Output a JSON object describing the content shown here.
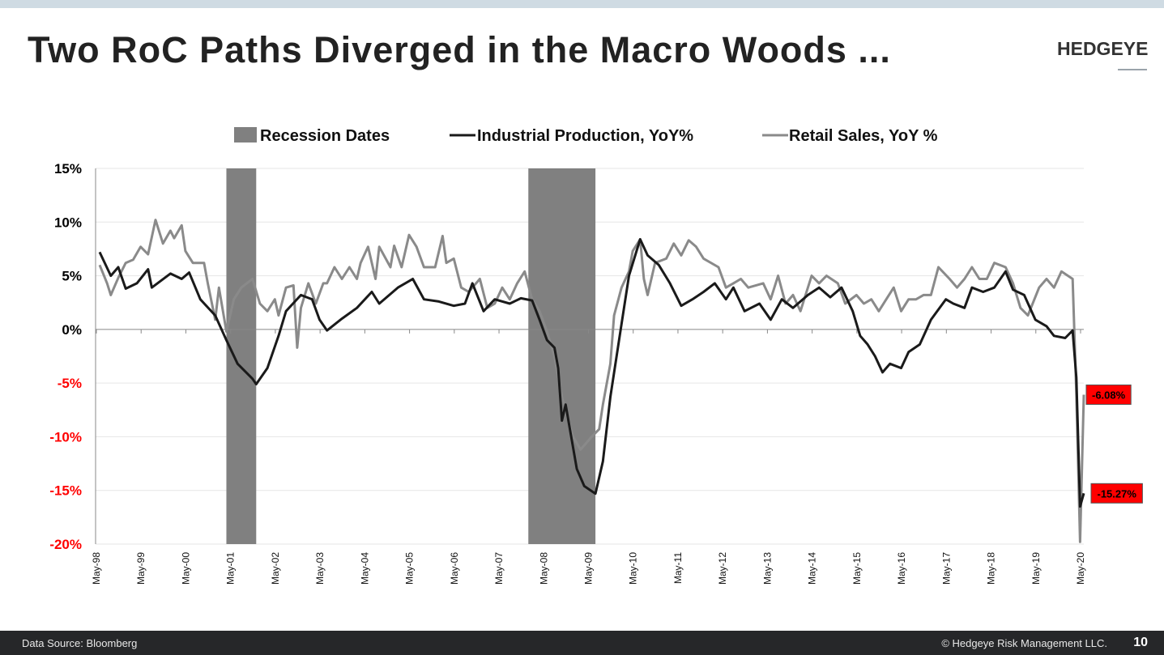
{
  "header": {
    "title": "Two RoC Paths Diverged in the Macro Woods ...",
    "logo": "HEDGEYE"
  },
  "footer": {
    "source": "Data Source: Bloomberg",
    "copyright": "© Hedgeye Risk Management LLC.",
    "page": "10"
  },
  "colors": {
    "recession": "#808080",
    "industrial_production": "#1a1a1a",
    "retail_sales": "#8a8a8a",
    "negative_tick": "#ff0000",
    "callout_bg": "#ff0000",
    "topbar": "#cfdbe3",
    "footer_bg": "#262729"
  },
  "chart_data": {
    "type": "line",
    "title": "",
    "xlabel": "",
    "ylabel": "",
    "ylim": [
      -20,
      15
    ],
    "yticks": [
      "15%",
      "10%",
      "5%",
      "0%",
      "-5%",
      "-10%",
      "-15%",
      "-20%"
    ],
    "ytick_values": [
      15,
      10,
      5,
      0,
      -5,
      -10,
      -15,
      -20
    ],
    "xlim": [
      "1998-05",
      "2020-05"
    ],
    "xticks": [
      "May-98",
      "May-99",
      "May-00",
      "May-01",
      "May-02",
      "May-03",
      "May-04",
      "May-05",
      "May-06",
      "May-07",
      "May-08",
      "May-09",
      "May-10",
      "May-11",
      "May-12",
      "May-13",
      "May-14",
      "May-15",
      "May-16",
      "May-17",
      "May-18",
      "May-19",
      "May-20"
    ],
    "grid": true,
    "legend_placement": "top",
    "legend": [
      "Recession Dates",
      "Industrial Production, YoY%",
      "Retail Sales, YoY %"
    ],
    "recessions": [
      {
        "start": "2001-03",
        "end": "2001-11"
      },
      {
        "start": "2007-12",
        "end": "2009-06"
      }
    ],
    "series": [
      {
        "name": "Industrial Production, YoY%",
        "points": [
          [
            "1998-05",
            7.2
          ],
          [
            "1998-08",
            5.0
          ],
          [
            "1998-10",
            5.8
          ],
          [
            "1998-12",
            3.8
          ],
          [
            "1999-03",
            4.3
          ],
          [
            "1999-06",
            5.6
          ],
          [
            "1999-07",
            3.9
          ],
          [
            "1999-12",
            5.2
          ],
          [
            "2000-03",
            4.7
          ],
          [
            "2000-05",
            5.3
          ],
          [
            "2000-08",
            2.8
          ],
          [
            "2000-12",
            1.3
          ],
          [
            "2001-03",
            -1.0
          ],
          [
            "2001-06",
            -3.2
          ],
          [
            "2001-10",
            -4.6
          ],
          [
            "2001-11",
            -5.1
          ],
          [
            "2002-02",
            -3.6
          ],
          [
            "2002-05",
            -0.6
          ],
          [
            "2002-07",
            1.7
          ],
          [
            "2002-11",
            3.2
          ],
          [
            "2003-02",
            2.8
          ],
          [
            "2003-04",
            0.9
          ],
          [
            "2003-06",
            -0.1
          ],
          [
            "2003-10",
            1.0
          ],
          [
            "2004-02",
            2.0
          ],
          [
            "2004-06",
            3.5
          ],
          [
            "2004-08",
            2.4
          ],
          [
            "2005-01",
            3.9
          ],
          [
            "2005-05",
            4.7
          ],
          [
            "2005-08",
            2.8
          ],
          [
            "2005-12",
            2.6
          ],
          [
            "2006-04",
            2.2
          ],
          [
            "2006-07",
            2.4
          ],
          [
            "2006-09",
            4.3
          ],
          [
            "2006-12",
            1.7
          ],
          [
            "2007-03",
            2.8
          ],
          [
            "2007-07",
            2.4
          ],
          [
            "2007-10",
            2.9
          ],
          [
            "2008-01",
            2.7
          ],
          [
            "2008-03",
            0.9
          ],
          [
            "2008-05",
            -1.0
          ],
          [
            "2008-07",
            -1.7
          ],
          [
            "2008-08",
            -3.6
          ],
          [
            "2008-09",
            -8.5
          ],
          [
            "2008-10",
            -7.0
          ],
          [
            "2009-01",
            -13.0
          ],
          [
            "2009-03",
            -14.6
          ],
          [
            "2009-06",
            -15.3
          ],
          [
            "2009-08",
            -12.3
          ],
          [
            "2009-10",
            -6.3
          ],
          [
            "2010-01",
            0.5
          ],
          [
            "2010-03",
            5.0
          ],
          [
            "2010-06",
            8.4
          ],
          [
            "2010-08",
            6.9
          ],
          [
            "2010-11",
            6.0
          ],
          [
            "2011-02",
            4.3
          ],
          [
            "2011-05",
            2.2
          ],
          [
            "2011-08",
            2.8
          ],
          [
            "2011-11",
            3.5
          ],
          [
            "2012-02",
            4.3
          ],
          [
            "2012-05",
            2.8
          ],
          [
            "2012-07",
            3.9
          ],
          [
            "2012-10",
            1.7
          ],
          [
            "2013-02",
            2.4
          ],
          [
            "2013-05",
            0.9
          ],
          [
            "2013-08",
            2.8
          ],
          [
            "2013-11",
            2.0
          ],
          [
            "2014-03",
            3.2
          ],
          [
            "2014-06",
            3.9
          ],
          [
            "2014-09",
            3.0
          ],
          [
            "2014-12",
            3.9
          ],
          [
            "2015-03",
            1.7
          ],
          [
            "2015-05",
            -0.6
          ],
          [
            "2015-07",
            -1.4
          ],
          [
            "2015-09",
            -2.5
          ],
          [
            "2015-11",
            -4.0
          ],
          [
            "2016-01",
            -3.2
          ],
          [
            "2016-04",
            -3.6
          ],
          [
            "2016-06",
            -2.1
          ],
          [
            "2016-09",
            -1.4
          ],
          [
            "2016-12",
            0.9
          ],
          [
            "2017-04",
            2.8
          ],
          [
            "2017-06",
            2.4
          ],
          [
            "2017-09",
            2.0
          ],
          [
            "2017-11",
            3.9
          ],
          [
            "2018-02",
            3.5
          ],
          [
            "2018-05",
            3.9
          ],
          [
            "2018-08",
            5.4
          ],
          [
            "2018-10",
            3.7
          ],
          [
            "2019-01",
            3.2
          ],
          [
            "2019-04",
            0.9
          ],
          [
            "2019-07",
            0.3
          ],
          [
            "2019-09",
            -0.6
          ],
          [
            "2019-12",
            -0.8
          ],
          [
            "2020-02",
            -0.1
          ],
          [
            "2020-03",
            -4.5
          ],
          [
            "2020-04",
            -16.5
          ],
          [
            "2020-05",
            -15.27
          ]
        ],
        "last_label": "-15.27%"
      },
      {
        "name": "Retail Sales, YoY %",
        "points": [
          [
            "1998-05",
            6.0
          ],
          [
            "1998-07",
            4.3
          ],
          [
            "1998-08",
            3.2
          ],
          [
            "1998-10",
            4.8
          ],
          [
            "1998-12",
            6.2
          ],
          [
            "1999-02",
            6.5
          ],
          [
            "1999-04",
            7.7
          ],
          [
            "1999-06",
            7.0
          ],
          [
            "1999-08",
            10.2
          ],
          [
            "1999-10",
            8.0
          ],
          [
            "1999-12",
            9.2
          ],
          [
            "2000-01",
            8.5
          ],
          [
            "2000-03",
            9.7
          ],
          [
            "2000-04",
            7.3
          ],
          [
            "2000-06",
            6.2
          ],
          [
            "2000-09",
            6.2
          ],
          [
            "2000-10",
            4.3
          ],
          [
            "2000-12",
            0.9
          ],
          [
            "2001-01",
            3.9
          ],
          [
            "2001-03",
            -0.2
          ],
          [
            "2001-05",
            2.8
          ],
          [
            "2001-07",
            3.9
          ],
          [
            "2001-10",
            4.7
          ],
          [
            "2001-12",
            2.4
          ],
          [
            "2002-02",
            1.7
          ],
          [
            "2002-04",
            2.8
          ],
          [
            "2002-05",
            1.3
          ],
          [
            "2002-07",
            3.9
          ],
          [
            "2002-09",
            4.1
          ],
          [
            "2002-10",
            -1.7
          ],
          [
            "2002-11",
            2.0
          ],
          [
            "2003-01",
            4.3
          ],
          [
            "2003-03",
            2.4
          ],
          [
            "2003-05",
            4.3
          ],
          [
            "2003-06",
            4.3
          ],
          [
            "2003-08",
            5.8
          ],
          [
            "2003-10",
            4.7
          ],
          [
            "2003-12",
            5.8
          ],
          [
            "2004-02",
            4.7
          ],
          [
            "2004-03",
            6.2
          ],
          [
            "2004-05",
            7.7
          ],
          [
            "2004-07",
            4.7
          ],
          [
            "2004-08",
            7.7
          ],
          [
            "2004-11",
            5.8
          ],
          [
            "2004-12",
            7.8
          ],
          [
            "2005-02",
            5.8
          ],
          [
            "2005-04",
            8.8
          ],
          [
            "2005-06",
            7.7
          ],
          [
            "2005-08",
            5.8
          ],
          [
            "2005-11",
            5.8
          ],
          [
            "2006-01",
            8.7
          ],
          [
            "2006-02",
            6.2
          ],
          [
            "2006-04",
            6.6
          ],
          [
            "2006-06",
            3.9
          ],
          [
            "2006-08",
            3.5
          ],
          [
            "2006-11",
            4.7
          ],
          [
            "2007-01",
            2.0
          ],
          [
            "2007-03",
            2.4
          ],
          [
            "2007-05",
            3.9
          ],
          [
            "2007-07",
            2.8
          ],
          [
            "2007-09",
            4.3
          ],
          [
            "2007-11",
            5.4
          ],
          [
            "2008-01",
            2.8
          ],
          [
            "2008-03",
            1.7
          ],
          [
            "2008-05",
            -0.2
          ],
          [
            "2008-07",
            -2.5
          ],
          [
            "2008-09",
            -6.3
          ],
          [
            "2008-12",
            -10.0
          ],
          [
            "2009-02",
            -11.2
          ],
          [
            "2009-05",
            -10.0
          ],
          [
            "2009-07",
            -9.3
          ],
          [
            "2009-08",
            -7.0
          ],
          [
            "2009-10",
            -3.2
          ],
          [
            "2009-11",
            1.3
          ],
          [
            "2010-01",
            3.9
          ],
          [
            "2010-03",
            5.4
          ],
          [
            "2010-04",
            7.3
          ],
          [
            "2010-06",
            8.4
          ],
          [
            "2010-07",
            4.7
          ],
          [
            "2010-08",
            3.2
          ],
          [
            "2010-10",
            6.2
          ],
          [
            "2011-01",
            6.6
          ],
          [
            "2011-03",
            8.0
          ],
          [
            "2011-05",
            6.9
          ],
          [
            "2011-07",
            8.3
          ],
          [
            "2011-09",
            7.7
          ],
          [
            "2011-11",
            6.6
          ],
          [
            "2012-03",
            5.8
          ],
          [
            "2012-05",
            3.9
          ],
          [
            "2012-07",
            4.3
          ],
          [
            "2012-09",
            4.7
          ],
          [
            "2012-11",
            3.9
          ],
          [
            "2013-03",
            4.3
          ],
          [
            "2013-05",
            2.8
          ],
          [
            "2013-07",
            5.0
          ],
          [
            "2013-09",
            2.4
          ],
          [
            "2013-11",
            3.2
          ],
          [
            "2014-01",
            1.7
          ],
          [
            "2014-04",
            5.0
          ],
          [
            "2014-06",
            4.3
          ],
          [
            "2014-08",
            5.0
          ],
          [
            "2014-11",
            4.3
          ],
          [
            "2015-01",
            2.4
          ],
          [
            "2015-04",
            3.2
          ],
          [
            "2015-06",
            2.4
          ],
          [
            "2015-08",
            2.8
          ],
          [
            "2015-10",
            1.7
          ],
          [
            "2015-12",
            2.8
          ],
          [
            "2016-02",
            3.9
          ],
          [
            "2016-04",
            1.7
          ],
          [
            "2016-06",
            2.8
          ],
          [
            "2016-08",
            2.8
          ],
          [
            "2016-10",
            3.2
          ],
          [
            "2016-12",
            3.2
          ],
          [
            "2017-02",
            5.8
          ],
          [
            "2017-05",
            4.7
          ],
          [
            "2017-07",
            3.9
          ],
          [
            "2017-09",
            4.7
          ],
          [
            "2017-11",
            5.8
          ],
          [
            "2018-01",
            4.7
          ],
          [
            "2018-03",
            4.7
          ],
          [
            "2018-05",
            6.2
          ],
          [
            "2018-08",
            5.8
          ],
          [
            "2018-10",
            4.3
          ],
          [
            "2018-12",
            2.0
          ],
          [
            "2019-02",
            1.3
          ],
          [
            "2019-05",
            3.9
          ],
          [
            "2019-07",
            4.7
          ],
          [
            "2019-09",
            3.9
          ],
          [
            "2019-11",
            5.4
          ],
          [
            "2020-02",
            4.7
          ],
          [
            "2020-03",
            -6.0
          ],
          [
            "2020-04",
            -19.8
          ],
          [
            "2020-05",
            -6.08
          ]
        ],
        "last_label": "-6.08%"
      }
    ]
  }
}
